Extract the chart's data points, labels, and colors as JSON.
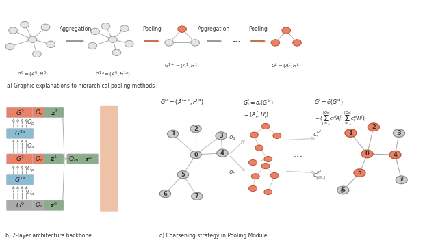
{
  "fig_width": 6.4,
  "fig_height": 3.61,
  "dpi": 100,
  "bg_color": "#f5f3ef",
  "panel_a": {
    "label": "a) Graphic explanations to hierarchical pooling methods",
    "node_color_gray": "#e8e4de",
    "node_color_red": "#e8836a",
    "node_edge_gray": "#999999",
    "node_edge_red": "#c05030",
    "edge_color": "#aaaaaa",
    "arrow_gray_color": "#999999",
    "arrow_red_color": "#c97050",
    "agg_label": "Aggregation",
    "pool_label": "Pooling",
    "graph0_label": "$G^0 = (A^0, H^0)$",
    "graph1a_label": "$G^{1a} = (A^0, H^{1a})$",
    "graph1_label": "$G^{1-} = (A^1, H^1)$",
    "graphL_label": "$G^L = (A^L, H^L)$"
  },
  "panel_b": {
    "label": "b) 2-layer architecture backbone",
    "box_red": "#e8836a",
    "box_blue": "#8bbcd4",
    "box_green": "#8bad8b",
    "box_gray": "#aaaaaa",
    "box_orange_bg": "#e8a882",
    "G2_label": "$G^2$",
    "G2a_label": "$G^{2a}$",
    "G1_label": "$G^1$",
    "G1a_label": "$G^{1a}$",
    "G0_label": "$G^0$",
    "Or_label": "$O_r$",
    "Op_label": "$O_p$",
    "Oa_label": "$O_a$",
    "z2_label": "$\\mathbf{z}^2$",
    "z1_label": "$\\mathbf{z}^1$",
    "z0_label": "$\\mathbf{z}^0$",
    "Om_label": "$O_m$",
    "zu_label": "$\\mathbf{z}^u$"
  },
  "panel_c": {
    "label": "c) Coarsening strategy in Pooling Module",
    "node_color_gray": "#d0ccc6",
    "node_color_red": "#e8836a",
    "node_edge_gray": "#888888",
    "node_edge_red": "#c05030",
    "formula1": "$G^{la} = (A^{l-1}, H^{la})$",
    "formula2": "$G_i^l = o_i(G^{la})$",
    "formula3": "$G^l = \\bar{o}(G^{la})$",
    "formula4": "$= (A_i^l, H_i^l)$",
    "formula5": "$= (\\sum_{i=1}^{|O_p|} c_i^{pl} A_i^l, \\sum_{i=1}^{|O_p|} c_i^{pl} H_i^l))$",
    "c1_label": "$c_1^{pl}$",
    "cN_label": "$c_{|O_p|}^{pl}$",
    "o1_label": "$o_1$",
    "on_label": "$o_n$"
  }
}
